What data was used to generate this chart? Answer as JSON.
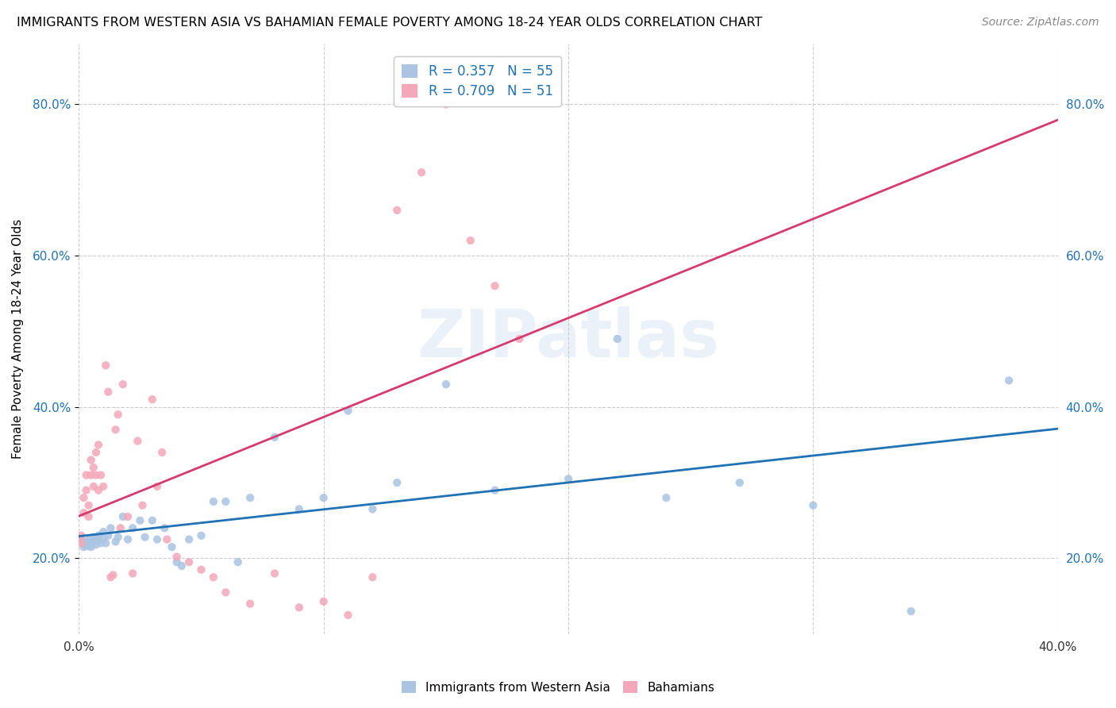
{
  "title": "IMMIGRANTS FROM WESTERN ASIA VS BAHAMIAN FEMALE POVERTY AMONG 18-24 YEAR OLDS CORRELATION CHART",
  "source": "Source: ZipAtlas.com",
  "ylabel": "Female Poverty Among 18-24 Year Olds",
  "xlim": [
    0.0,
    0.4
  ],
  "ylim": [
    0.1,
    0.88
  ],
  "yticks": [
    0.2,
    0.4,
    0.6,
    0.8
  ],
  "ytick_labels": [
    "20.0%",
    "40.0%",
    "60.0%",
    "80.0%"
  ],
  "xticks": [
    0.0,
    0.1,
    0.2,
    0.3,
    0.4
  ],
  "xtick_labels": [
    "0.0%",
    "",
    "",
    "",
    "40.0%"
  ],
  "blue_R": 0.357,
  "blue_N": 55,
  "pink_R": 0.709,
  "pink_N": 51,
  "blue_color": "#aac4e2",
  "blue_line_color": "#2171b5",
  "pink_color": "#f4a7b9",
  "pink_line_color": "#d63a6e",
  "watermark_text": "ZIPatlas",
  "legend_label_blue": "Immigrants from Western Asia",
  "legend_label_pink": "Bahamians",
  "blue_scatter_x": [
    0.001,
    0.002,
    0.002,
    0.003,
    0.003,
    0.004,
    0.004,
    0.005,
    0.005,
    0.006,
    0.006,
    0.007,
    0.007,
    0.008,
    0.008,
    0.009,
    0.01,
    0.01,
    0.011,
    0.012,
    0.013,
    0.015,
    0.016,
    0.018,
    0.02,
    0.022,
    0.025,
    0.027,
    0.03,
    0.032,
    0.035,
    0.038,
    0.04,
    0.042,
    0.045,
    0.05,
    0.055,
    0.06,
    0.065,
    0.07,
    0.08,
    0.09,
    0.1,
    0.11,
    0.12,
    0.13,
    0.15,
    0.17,
    0.2,
    0.22,
    0.24,
    0.27,
    0.3,
    0.34,
    0.38
  ],
  "blue_scatter_y": [
    0.225,
    0.22,
    0.215,
    0.222,
    0.218,
    0.216,
    0.224,
    0.22,
    0.215,
    0.222,
    0.228,
    0.225,
    0.218,
    0.23,
    0.225,
    0.22,
    0.225,
    0.235,
    0.22,
    0.23,
    0.24,
    0.222,
    0.228,
    0.255,
    0.225,
    0.24,
    0.25,
    0.228,
    0.25,
    0.225,
    0.24,
    0.215,
    0.195,
    0.19,
    0.225,
    0.23,
    0.275,
    0.275,
    0.195,
    0.28,
    0.36,
    0.265,
    0.28,
    0.395,
    0.265,
    0.3,
    0.43,
    0.29,
    0.305,
    0.49,
    0.28,
    0.3,
    0.27,
    0.13,
    0.435
  ],
  "pink_scatter_x": [
    0.001,
    0.001,
    0.002,
    0.002,
    0.003,
    0.003,
    0.004,
    0.004,
    0.005,
    0.005,
    0.006,
    0.006,
    0.007,
    0.007,
    0.008,
    0.008,
    0.009,
    0.01,
    0.011,
    0.012,
    0.013,
    0.014,
    0.015,
    0.016,
    0.017,
    0.018,
    0.02,
    0.022,
    0.024,
    0.026,
    0.03,
    0.032,
    0.034,
    0.036,
    0.04,
    0.045,
    0.05,
    0.055,
    0.06,
    0.07,
    0.08,
    0.09,
    0.1,
    0.11,
    0.12,
    0.13,
    0.14,
    0.15,
    0.16,
    0.17,
    0.18
  ],
  "pink_scatter_y": [
    0.23,
    0.22,
    0.28,
    0.26,
    0.31,
    0.29,
    0.27,
    0.255,
    0.31,
    0.33,
    0.295,
    0.32,
    0.34,
    0.31,
    0.29,
    0.35,
    0.31,
    0.295,
    0.455,
    0.42,
    0.175,
    0.178,
    0.37,
    0.39,
    0.24,
    0.43,
    0.255,
    0.18,
    0.355,
    0.27,
    0.41,
    0.295,
    0.34,
    0.225,
    0.202,
    0.195,
    0.185,
    0.175,
    0.155,
    0.14,
    0.18,
    0.135,
    0.143,
    0.125,
    0.175,
    0.66,
    0.71,
    0.8,
    0.62,
    0.56,
    0.49
  ]
}
